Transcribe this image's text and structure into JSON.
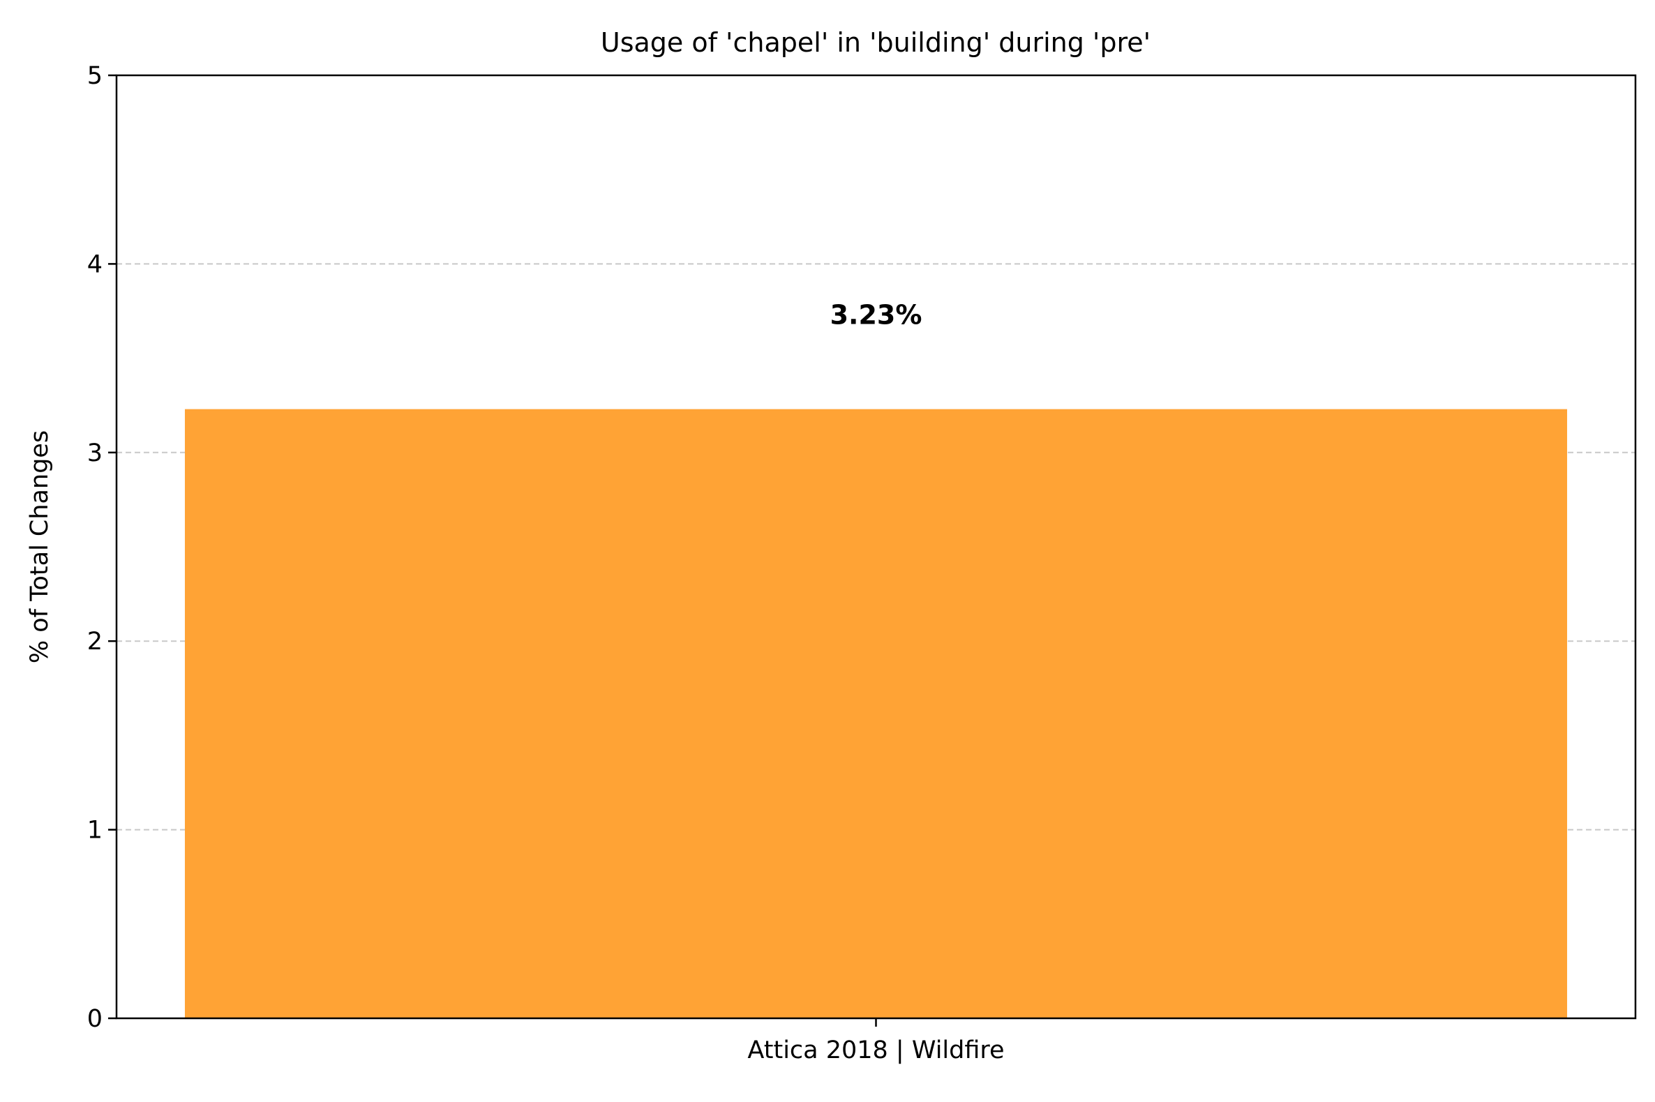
{
  "chart_data": {
    "type": "bar",
    "title": "Usage of 'chapel' in 'building' during 'pre'",
    "xlabel": "",
    "ylabel": "% of Total Changes",
    "categories": [
      "Attica 2018 | Wildfire"
    ],
    "values": [
      3.23
    ],
    "data_labels": [
      "3.23%"
    ],
    "ylim": [
      0,
      5
    ],
    "yticks": [
      0,
      1,
      2,
      3,
      4,
      5
    ],
    "ytick_labels": [
      "0",
      "1",
      "2",
      "3",
      "4",
      "5"
    ],
    "grid": "y-axis dashed",
    "legend": "none",
    "colors": {
      "bar": "#ffa335",
      "grid": "#c8c8c8",
      "axis": "#000000"
    }
  }
}
